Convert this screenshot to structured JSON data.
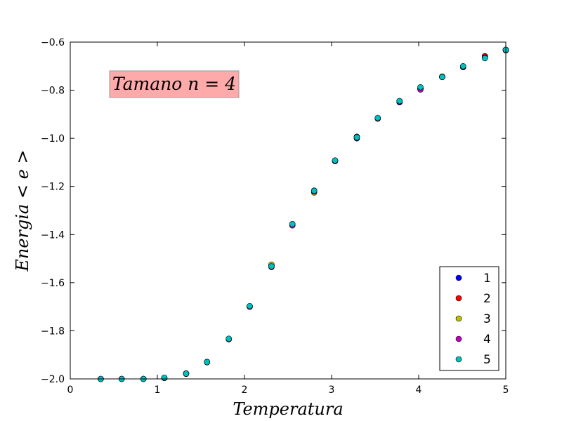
{
  "chart_data": {
    "type": "scatter",
    "title": "",
    "xlabel": "Temperatura",
    "ylabel": "Energia  < e >",
    "xlim": [
      0,
      5
    ],
    "ylim": [
      -2.0,
      -0.6
    ],
    "xticks": [
      "0",
      "1",
      "2",
      "3",
      "4",
      "5"
    ],
    "yticks": [
      "−2.0",
      "−1.8",
      "−1.6",
      "−1.4",
      "−1.2",
      "−1.0",
      "−0.8",
      "−0.6"
    ],
    "grid": false,
    "legend_position": "bottom-right",
    "annotation": "Tamano n = 4",
    "annotation_color": "#ff9999",
    "x": [
      0.35,
      0.59,
      0.84,
      1.08,
      1.33,
      1.57,
      1.82,
      2.06,
      2.31,
      2.55,
      2.8,
      3.04,
      3.29,
      3.53,
      3.78,
      4.02,
      4.27,
      4.51,
      4.76,
      5.0
    ],
    "series": [
      {
        "name": "1",
        "color": "#0000ff",
        "values": [
          -2.0,
          -2.0,
          -2.0,
          -1.996,
          -1.978,
          -1.93,
          -1.835,
          -1.7,
          -1.53,
          -1.36,
          -1.22,
          -1.094,
          -1.0,
          -0.918,
          -0.85,
          -0.792,
          -0.745,
          -0.704,
          -0.663,
          -0.632
        ]
      },
      {
        "name": "2",
        "color": "#ff0000",
        "values": [
          -2.0,
          -2.0,
          -2.0,
          -1.996,
          -1.977,
          -1.929,
          -1.833,
          -1.698,
          -1.527,
          -1.358,
          -1.217,
          -1.093,
          -0.993,
          -0.916,
          -0.845,
          -0.794,
          -0.743,
          -0.702,
          -0.658,
          -0.634
        ]
      },
      {
        "name": "3",
        "color": "#bfbf00",
        "values": [
          -2.0,
          -2.0,
          -2.0,
          -1.996,
          -1.978,
          -1.93,
          -1.834,
          -1.699,
          -1.525,
          -1.358,
          -1.225,
          -1.094,
          -0.995,
          -0.917,
          -0.846,
          -0.792,
          -0.745,
          -0.702,
          -0.664,
          -0.632
        ]
      },
      {
        "name": "4",
        "color": "#bf00bf",
        "values": [
          -2.0,
          -2.0,
          -2.0,
          -1.996,
          -1.979,
          -1.931,
          -1.835,
          -1.7,
          -1.535,
          -1.362,
          -1.22,
          -1.095,
          -0.998,
          -0.917,
          -0.845,
          -0.797,
          -0.745,
          -0.703,
          -0.665,
          -0.633
        ]
      },
      {
        "name": "5",
        "color": "#00bfbf",
        "values": [
          -2.0,
          -2.0,
          -2.0,
          -1.995,
          -1.978,
          -1.93,
          -1.833,
          -1.697,
          -1.532,
          -1.356,
          -1.218,
          -1.092,
          -0.996,
          -0.915,
          -0.845,
          -0.787,
          -0.745,
          -0.7,
          -0.667,
          -0.632
        ]
      }
    ]
  }
}
